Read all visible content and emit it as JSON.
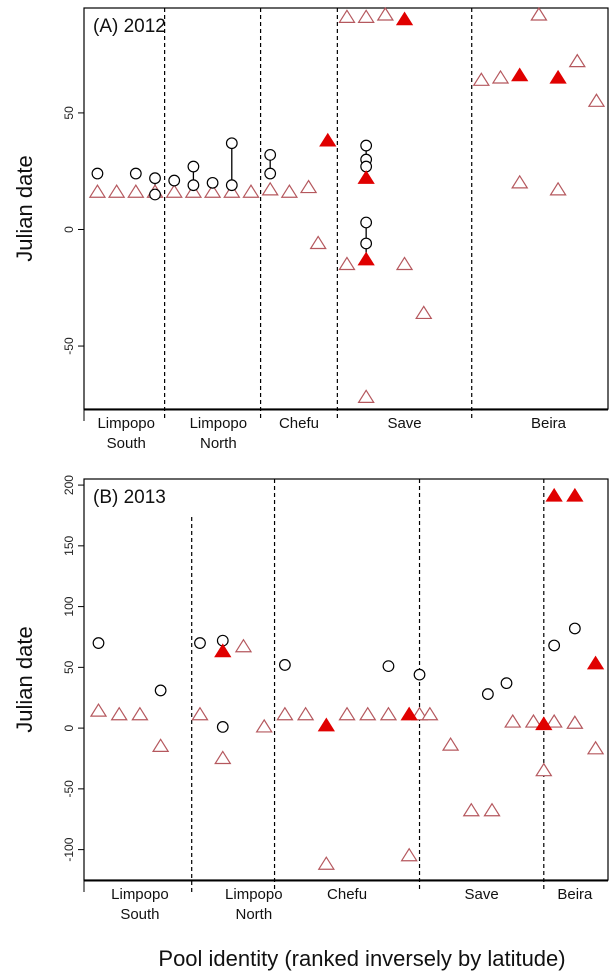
{
  "figure": {
    "xlabel": "Pool identity (ranked inversely by latitude)"
  },
  "colors": {
    "open_triangle": "#b5585e",
    "filled_triangle": "#e00000",
    "circle": "#000000"
  },
  "chart_data": [
    {
      "type": "scatter",
      "title": "(A) 2012",
      "ylabel": "Julian date",
      "ylim": [
        -77,
        95
      ],
      "yticks": [
        -50,
        0,
        50
      ],
      "grid": false,
      "xlim": [
        0.3,
        27.6
      ],
      "group_separators": [
        4.5,
        9.5,
        13.5,
        20.5
      ],
      "sub_separators": [],
      "groups": [
        {
          "label_lines": [
            "Limpopo",
            "South"
          ],
          "center": 2.5
        },
        {
          "label_lines": [
            "Limpopo",
            "North"
          ],
          "center": 7.3
        },
        {
          "label_lines": [
            "Chefu"
          ],
          "center": 11.5
        },
        {
          "label_lines": [
            "Save"
          ],
          "center": 17
        },
        {
          "label_lines": [
            "Beira"
          ],
          "center": 24.5
        }
      ],
      "open_triangles": [
        [
          1,
          16
        ],
        [
          2,
          16
        ],
        [
          3,
          16
        ],
        [
          4,
          16
        ],
        [
          5,
          16
        ],
        [
          6,
          16
        ],
        [
          7,
          16
        ],
        [
          8,
          16
        ],
        [
          9,
          16
        ],
        [
          10,
          17
        ],
        [
          11,
          16
        ],
        [
          12,
          18
        ],
        [
          12.5,
          -6
        ],
        [
          14,
          91
        ],
        [
          14,
          -15
        ],
        [
          15,
          91
        ],
        [
          16,
          92
        ],
        [
          17,
          -15
        ],
        [
          18,
          -36
        ],
        [
          15,
          -72
        ],
        [
          21,
          64
        ],
        [
          22,
          65
        ],
        [
          24,
          92
        ],
        [
          23,
          20
        ],
        [
          25,
          17
        ],
        [
          26,
          72
        ],
        [
          27,
          55
        ]
      ],
      "filled_triangles": [
        [
          13,
          38
        ],
        [
          15,
          22
        ],
        [
          15,
          -13
        ],
        [
          17,
          90
        ],
        [
          23,
          66
        ],
        [
          25,
          65
        ]
      ],
      "circles": [
        [
          1,
          24
        ],
        [
          3,
          24
        ],
        [
          4,
          22
        ],
        [
          4,
          15
        ],
        [
          5,
          21
        ],
        [
          6,
          27
        ],
        [
          6,
          19
        ],
        [
          7,
          20
        ],
        [
          8,
          37
        ],
        [
          8,
          19
        ],
        [
          10,
          32
        ],
        [
          10,
          24
        ],
        [
          15,
          36
        ],
        [
          15,
          30
        ],
        [
          15,
          27
        ],
        [
          15,
          3
        ],
        [
          15,
          -6
        ]
      ],
      "links": [
        [
          4,
          22,
          15
        ],
        [
          6,
          27,
          19
        ],
        [
          8,
          37,
          19
        ],
        [
          10,
          32,
          24
        ],
        [
          15,
          36,
          30
        ],
        [
          15,
          27,
          22
        ],
        [
          15,
          3,
          -6
        ],
        [
          15,
          -6,
          -13
        ]
      ]
    },
    {
      "type": "scatter",
      "title": "(B) 2013",
      "ylabel": "Julian date",
      "ylim": [
        -125,
        205
      ],
      "yticks": [
        -100,
        -50,
        0,
        50,
        100,
        150,
        200
      ],
      "grid": false,
      "xlim": [
        0.3,
        25.6
      ],
      "group_separators": [
        9.5,
        16.5,
        22.5
      ],
      "sub_separators": [
        5.5
      ],
      "groups": [
        {
          "label_lines": [
            "Limpopo",
            "South"
          ],
          "center": 3
        },
        {
          "label_lines": [
            "Limpopo",
            "North"
          ],
          "center": 8.5
        },
        {
          "label_lines": [
            "Chefu"
          ],
          "center": 13
        },
        {
          "label_lines": [
            "Save"
          ],
          "center": 19.5
        },
        {
          "label_lines": [
            "Beira"
          ],
          "center": 24
        }
      ],
      "open_triangles": [
        [
          1,
          14
        ],
        [
          2,
          11
        ],
        [
          3,
          11
        ],
        [
          4,
          -15
        ],
        [
          5.9,
          11
        ],
        [
          7,
          -25
        ],
        [
          8,
          67
        ],
        [
          9,
          1
        ],
        [
          10,
          11
        ],
        [
          11,
          11
        ],
        [
          12,
          -112
        ],
        [
          13,
          11
        ],
        [
          14,
          11
        ],
        [
          15,
          11
        ],
        [
          16,
          -105
        ],
        [
          16.5,
          11
        ],
        [
          17,
          11
        ],
        [
          18,
          -14
        ],
        [
          19,
          -68
        ],
        [
          20,
          -68
        ],
        [
          21,
          5
        ],
        [
          22,
          5
        ],
        [
          22.5,
          -35
        ],
        [
          23,
          5
        ],
        [
          24,
          4
        ],
        [
          25,
          -17
        ]
      ],
      "filled_triangles": [
        [
          7,
          63
        ],
        [
          12,
          2
        ],
        [
          16,
          11
        ],
        [
          22.5,
          3
        ],
        [
          23,
          191
        ],
        [
          24,
          191
        ],
        [
          25,
          53
        ]
      ],
      "circles": [
        [
          1,
          70
        ],
        [
          4,
          31
        ],
        [
          5.9,
          70
        ],
        [
          7,
          72
        ],
        [
          7,
          1
        ],
        [
          10,
          52
        ],
        [
          15,
          51
        ],
        [
          16.5,
          44
        ],
        [
          19.8,
          28
        ],
        [
          20.7,
          37
        ],
        [
          23,
          68
        ],
        [
          24,
          82
        ]
      ],
      "links": []
    }
  ]
}
